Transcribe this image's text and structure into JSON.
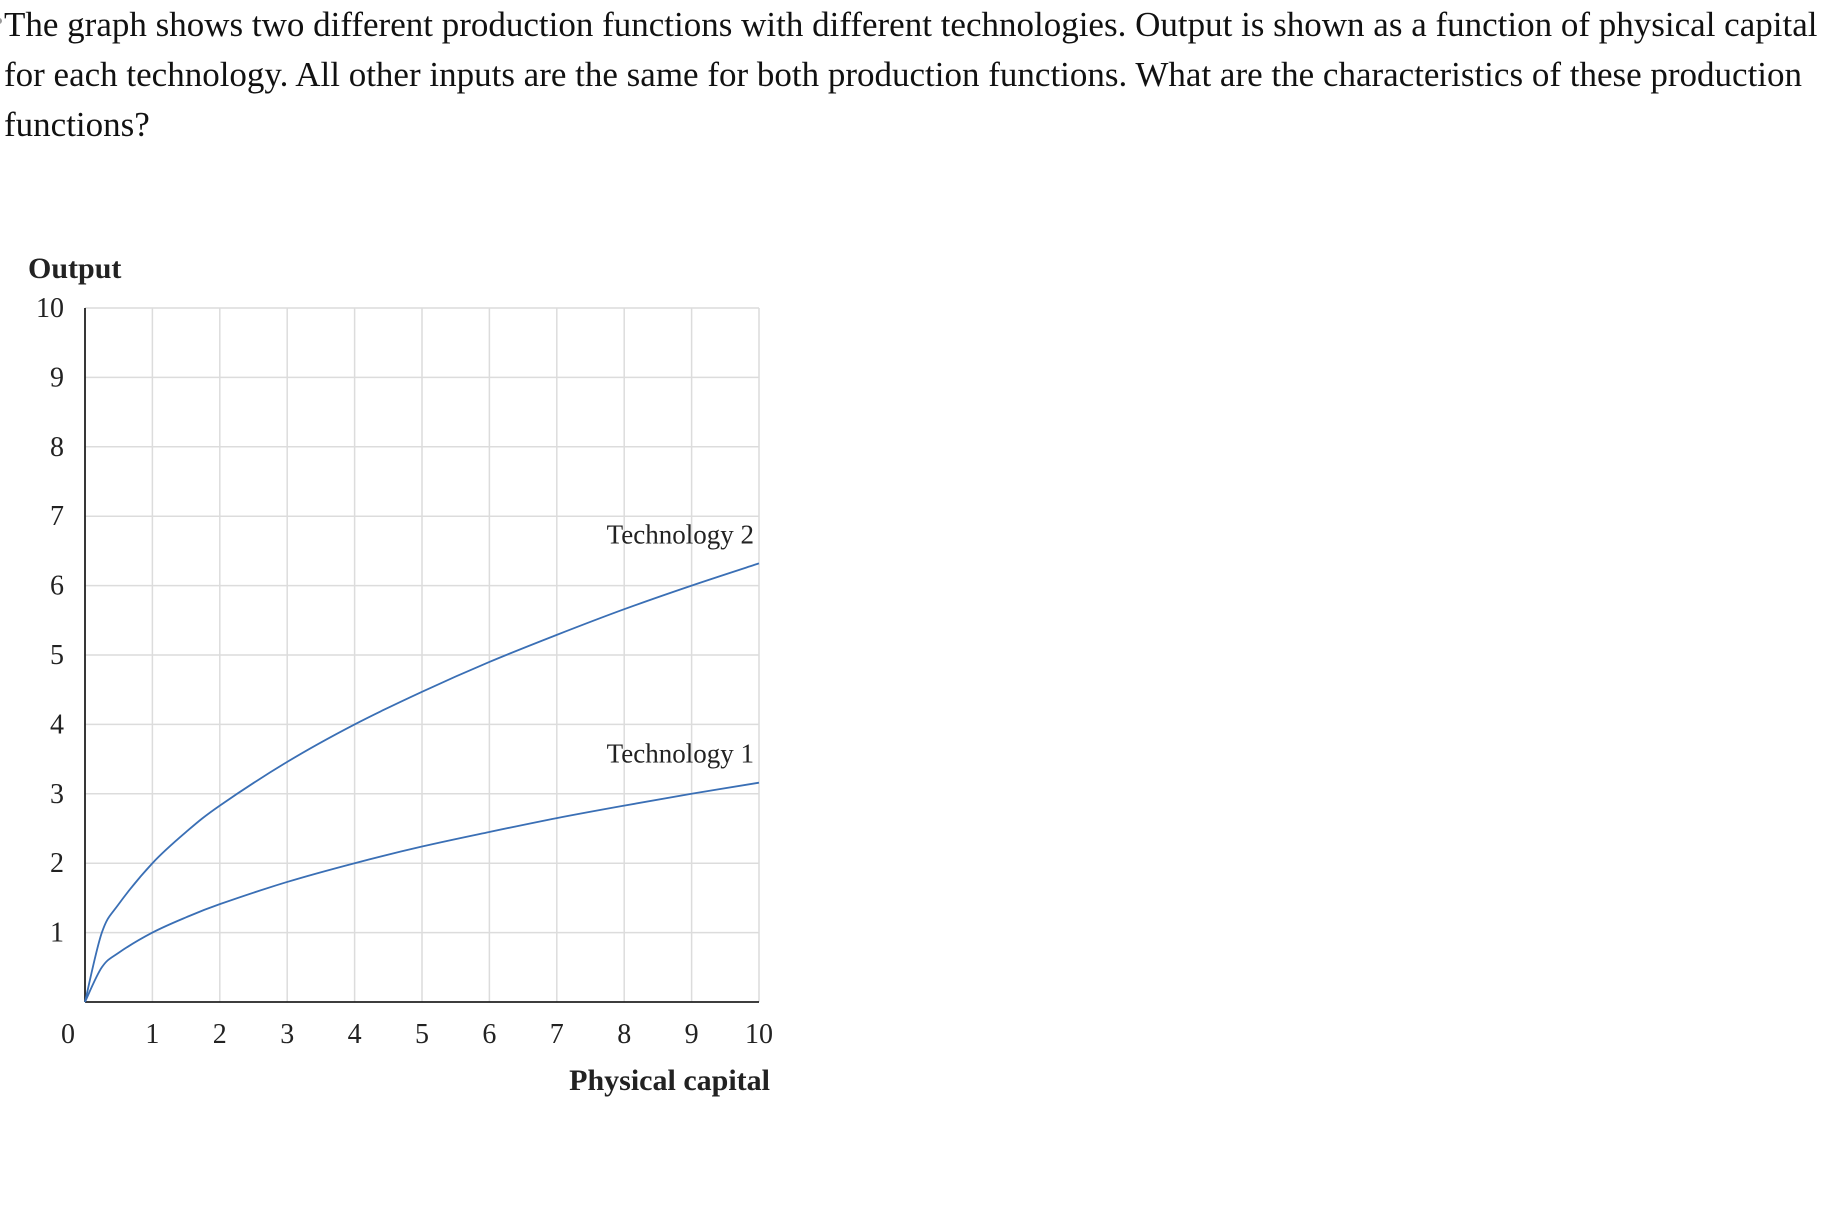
{
  "question": {
    "text": "The graph shows two different production functions with different technologies. Output is shown as a function of physical capital for each technology. All other inputs are the same for both production functions. What are the characteristics of these production functions?"
  },
  "chart_data": {
    "type": "line",
    "title": "",
    "xlabel": "Physical capital",
    "ylabel": "Output",
    "xlim": [
      0,
      10
    ],
    "ylim": [
      0,
      10
    ],
    "x_ticks": [
      "0",
      "1",
      "2",
      "3",
      "4",
      "5",
      "6",
      "7",
      "8",
      "9",
      "10"
    ],
    "y_ticks": [
      "1",
      "2",
      "3",
      "4",
      "5",
      "6",
      "7",
      "8",
      "9",
      "10"
    ],
    "grid": true,
    "line_color": "#3a6fb5",
    "series": [
      {
        "name": "Technology 2",
        "x": [
          0,
          0.25,
          0.5,
          1,
          1.5,
          2,
          3,
          4,
          5,
          6,
          7,
          8,
          9,
          10
        ],
        "y": [
          0,
          1.0,
          1.41,
          2.0,
          2.45,
          2.83,
          3.46,
          4.0,
          4.47,
          4.9,
          5.29,
          5.66,
          6.0,
          6.32
        ]
      },
      {
        "name": "Technology 1",
        "x": [
          0,
          0.25,
          0.5,
          1,
          1.5,
          2,
          3,
          4,
          5,
          6,
          7,
          8,
          9,
          10
        ],
        "y": [
          0,
          0.5,
          0.71,
          1.0,
          1.22,
          1.41,
          1.73,
          2.0,
          2.24,
          2.45,
          2.65,
          2.83,
          3.0,
          3.16
        ]
      }
    ]
  }
}
